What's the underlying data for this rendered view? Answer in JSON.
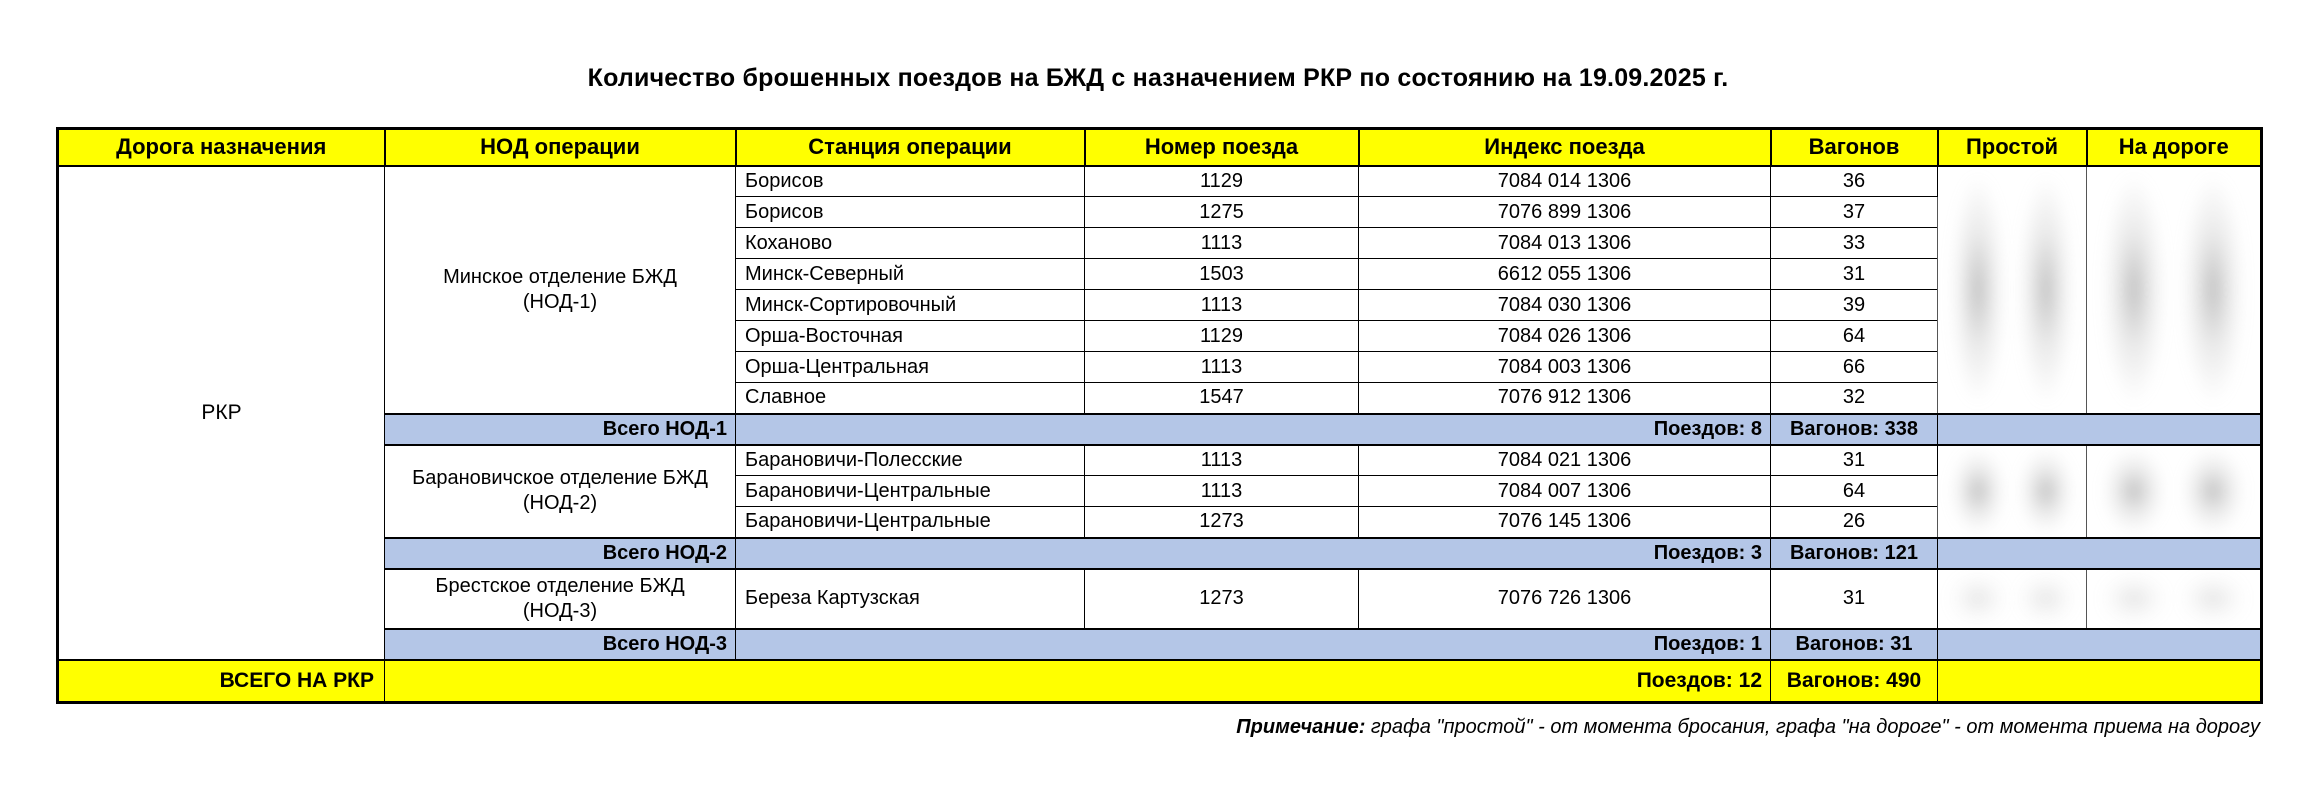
{
  "title": "Количество брошенных поездов на БЖД с назначением РКР по состоянию на 19.09.2025 г.",
  "colors": {
    "header_bg": "#FFFF00",
    "section_total_bg": "#B4C6E7",
    "grand_total_bg": "#FFFF00"
  },
  "table": {
    "headers": [
      "Дорога назначения",
      "НОД операции",
      "Станция операции",
      "Номер поезда",
      "Индекс поезда",
      "Вагонов",
      "Простой",
      "На дороге"
    ],
    "road": "РКР",
    "sections": [
      {
        "nod": "Минское отделение БЖД\n(НОД-1)",
        "rows": [
          {
            "station": "Борисов",
            "train": "1129",
            "index": "7084 014 1306",
            "wagons": "36"
          },
          {
            "station": "Борисов",
            "train": "1275",
            "index": "7076 899 1306",
            "wagons": "37"
          },
          {
            "station": "Коханово",
            "train": "1113",
            "index": "7084 013 1306",
            "wagons": "33"
          },
          {
            "station": "Минск-Северный",
            "train": "1503",
            "index": "6612 055 1306",
            "wagons": "31"
          },
          {
            "station": "Минск-Сортировочный",
            "train": "1113",
            "index": "7084 030 1306",
            "wagons": "39"
          },
          {
            "station": "Орша-Восточная",
            "train": "1129",
            "index": "7084 026 1306",
            "wagons": "64"
          },
          {
            "station": "Орша-Центральная",
            "train": "1113",
            "index": "7084 003 1306",
            "wagons": "66"
          },
          {
            "station": "Славное",
            "train": "1547",
            "index": "7076 912 1306",
            "wagons": "32"
          }
        ],
        "total_label": "Всего НОД-1",
        "total_trains": "Поездов: 8",
        "total_wagons": "Вагонов: 338",
        "redact_light": false,
        "tall_rows": false
      },
      {
        "nod": "Барановичское отделение БЖД\n(НОД-2)",
        "rows": [
          {
            "station": "Барановичи-Полесские",
            "train": "1113",
            "index": "7084 021 1306",
            "wagons": "31"
          },
          {
            "station": "Барановичи-Центральные",
            "train": "1113",
            "index": "7084 007 1306",
            "wagons": "64"
          },
          {
            "station": "Барановичи-Центральные",
            "train": "1273",
            "index": "7076 145 1306",
            "wagons": "26"
          }
        ],
        "total_label": "Всего НОД-2",
        "total_trains": "Поездов: 3",
        "total_wagons": "Вагонов: 121",
        "redact_light": false,
        "tall_rows": false
      },
      {
        "nod": "Брестское отделение БЖД\n(НОД-3)",
        "rows": [
          {
            "station": "Береза Картузская",
            "train": "1273",
            "index": "7076 726 1306",
            "wagons": "31"
          }
        ],
        "total_label": "Всего НОД-3",
        "total_trains": "Поездов: 1",
        "total_wagons": "Вагонов: 31",
        "redact_light": true,
        "tall_rows": true
      }
    ],
    "grand_total": {
      "label": "ВСЕГО НА РКР",
      "trains": "Поездов: 12",
      "wagons": "Вагонов: 490"
    }
  },
  "note": {
    "label": "Примечание:",
    "text": " графа \"простой\" - от момента бросания, графа \"на дороге\" - от момента приема на дорогу"
  }
}
